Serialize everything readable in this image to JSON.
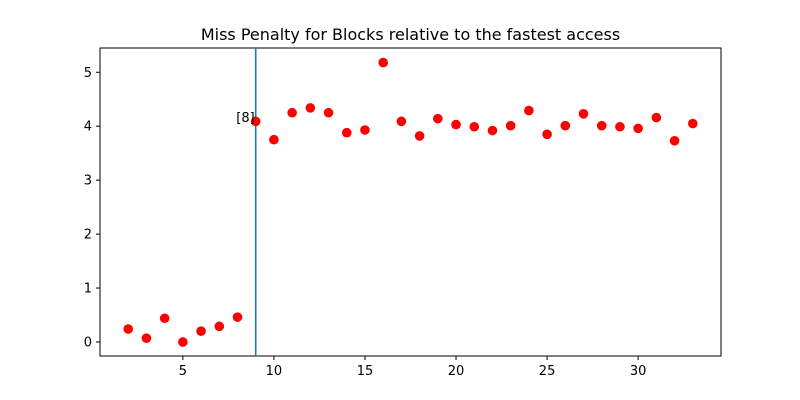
{
  "chart_data": {
    "type": "scatter",
    "title": "Miss Penalty for Blocks relative to the fastest access",
    "xlabel": "",
    "ylabel": "",
    "xlim": [
      0.45,
      34.55
    ],
    "ylim": [
      -0.26,
      5.45
    ],
    "xticks": [
      5,
      10,
      15,
      20,
      25,
      30
    ],
    "yticks": [
      0,
      1,
      2,
      3,
      4,
      5
    ],
    "grid": false,
    "marker_color": "#ff0000",
    "vline": {
      "x": 9,
      "color": "#1f77b4"
    },
    "annotation": {
      "text": "[8]",
      "x": 9,
      "y": 4.09
    },
    "series": [
      {
        "x": [
          2,
          3,
          4,
          5,
          6,
          7,
          8,
          9,
          10,
          11,
          12,
          13,
          14,
          15,
          16,
          17,
          18,
          19,
          20,
          21,
          22,
          23,
          24,
          25,
          26,
          27,
          28,
          29,
          30,
          31,
          32,
          33
        ],
        "y": [
          0.24,
          0.07,
          0.44,
          0.0,
          0.2,
          0.29,
          0.46,
          4.09,
          3.75,
          4.25,
          4.34,
          4.25,
          3.88,
          3.93,
          5.18,
          4.09,
          3.82,
          4.14,
          4.03,
          3.99,
          3.92,
          4.01,
          4.29,
          3.85,
          4.01,
          4.23,
          4.01,
          3.99,
          3.96,
          4.16,
          3.73,
          4.05
        ]
      }
    ]
  }
}
